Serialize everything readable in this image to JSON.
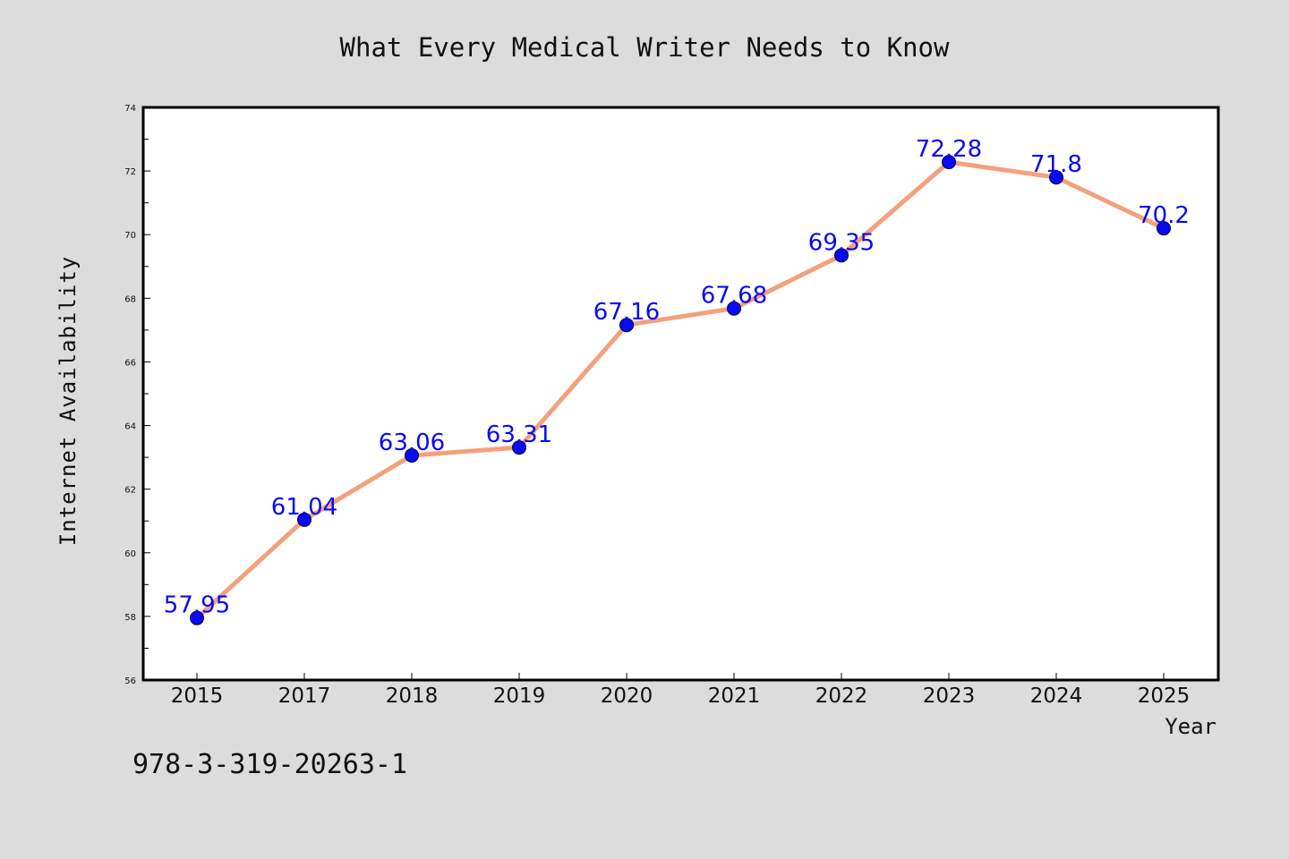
{
  "chart_data": {
    "type": "line",
    "title": "What Every Medical Writer Needs to Know",
    "xlabel": "Year",
    "ylabel": "Internet Availability",
    "categories": [
      "2015",
      "2017",
      "2018",
      "2019",
      "2020",
      "2021",
      "2022",
      "2023",
      "2024",
      "2025"
    ],
    "series": [
      {
        "values": [
          57.95,
          61.04,
          63.06,
          63.31,
          67.16,
          67.68,
          69.35,
          72.28,
          71.8,
          70.2
        ]
      }
    ],
    "data_labels": [
      "57.95",
      "61.04",
      "63.06",
      "63.31",
      "67.16",
      "67.68",
      "69.35",
      "72.28",
      "71.8",
      "70.2"
    ],
    "ylim": [
      56,
      74
    ],
    "yticks": [
      "56",
      "58",
      "60",
      "62",
      "64",
      "66",
      "68",
      "70",
      "72",
      "74"
    ],
    "grid": false,
    "legend": "none",
    "colors": {
      "line": "#f4a07c",
      "marker": "#0a0af0",
      "data_label": "#0a0af0",
      "figure_background": "#dcdcdc",
      "plot_background": "#ffffff"
    }
  },
  "footer": {
    "text": "978-3-319-20263-1"
  }
}
